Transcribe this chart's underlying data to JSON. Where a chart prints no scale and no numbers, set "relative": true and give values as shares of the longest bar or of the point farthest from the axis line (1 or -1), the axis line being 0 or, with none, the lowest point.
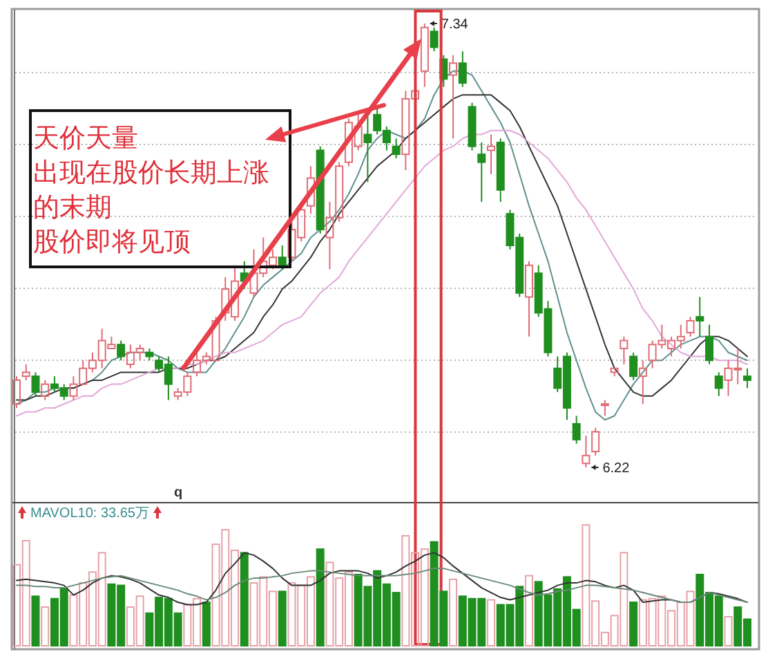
{
  "chart_data": [
    {
      "type": "candlestick",
      "grid": "y",
      "categories": [
        null,
        null,
        null,
        null,
        null,
        null,
        null,
        null,
        null,
        null,
        null,
        null,
        null,
        null,
        null,
        null,
        null,
        null,
        null,
        null,
        null,
        null,
        null,
        null,
        null,
        null,
        null,
        null,
        null,
        null,
        null,
        null,
        null,
        null,
        null,
        null,
        null,
        null,
        null,
        null,
        null,
        null,
        null,
        null,
        null,
        null,
        null,
        null,
        null,
        null,
        null,
        null,
        null,
        null,
        null,
        null,
        null,
        null,
        null,
        null,
        null,
        null,
        null,
        null,
        null,
        null,
        null,
        null,
        null,
        null,
        null,
        null,
        null,
        null,
        null,
        null,
        null,
        null
      ],
      "ohlc": [
        [
          6.38,
          6.45,
          6.37,
          6.44
        ],
        [
          6.45,
          6.48,
          6.44,
          6.46
        ],
        [
          6.45,
          6.46,
          6.4,
          6.41
        ],
        [
          6.4,
          6.44,
          6.39,
          6.43
        ],
        [
          6.43,
          6.45,
          6.41,
          6.42
        ],
        [
          6.42,
          6.43,
          6.39,
          6.4
        ],
        [
          6.4,
          6.45,
          6.39,
          6.43
        ],
        [
          6.43,
          6.49,
          6.43,
          6.47
        ],
        [
          6.47,
          6.51,
          6.46,
          6.49
        ],
        [
          6.49,
          6.57,
          6.47,
          6.54
        ],
        [
          6.52,
          6.55,
          6.52,
          6.53
        ],
        [
          6.53,
          6.54,
          6.49,
          6.5
        ],
        [
          6.48,
          6.53,
          6.47,
          6.51
        ],
        [
          6.51,
          6.53,
          6.49,
          6.52
        ],
        [
          6.51,
          6.52,
          6.49,
          6.5
        ],
        [
          6.49,
          6.5,
          6.46,
          6.47
        ],
        [
          6.48,
          6.5,
          6.39,
          6.43
        ],
        [
          6.4,
          6.42,
          6.39,
          6.41
        ],
        [
          6.41,
          6.46,
          6.4,
          6.45
        ],
        [
          6.46,
          6.51,
          6.45,
          6.49
        ],
        [
          6.49,
          6.51,
          6.48,
          6.5
        ],
        [
          6.49,
          6.6,
          6.49,
          6.59
        ],
        [
          6.61,
          6.7,
          6.59,
          6.67
        ],
        [
          6.6,
          6.73,
          6.59,
          6.69
        ],
        [
          6.71,
          6.74,
          6.67,
          6.69
        ],
        [
          6.66,
          6.77,
          6.65,
          6.71
        ],
        [
          6.71,
          6.8,
          6.7,
          6.74
        ],
        [
          6.73,
          6.77,
          6.72,
          6.75
        ],
        [
          6.75,
          6.78,
          6.72,
          6.73
        ],
        [
          6.75,
          6.84,
          6.74,
          6.82
        ],
        [
          6.8,
          6.88,
          6.79,
          6.87
        ],
        [
          6.88,
          6.98,
          6.86,
          6.95
        ],
        [
          7.02,
          7.03,
          6.81,
          6.82
        ],
        [
          6.8,
          6.89,
          6.72,
          6.85
        ],
        [
          6.85,
          6.99,
          6.84,
          6.98
        ],
        [
          6.99,
          7.1,
          6.98,
          7.09
        ],
        [
          7.03,
          7.11,
          7.02,
          7.08
        ],
        [
          7.06,
          7.11,
          6.94,
          7.04
        ],
        [
          7.11,
          7.13,
          7.06,
          7.07
        ],
        [
          7.07,
          7.08,
          7.02,
          7.04
        ],
        [
          7.03,
          7.05,
          7.0,
          7.01
        ],
        [
          7.01,
          7.17,
          6.97,
          7.15
        ],
        [
          7.15,
          7.18,
          7.13,
          7.17
        ],
        [
          7.22,
          7.34,
          7.18,
          7.33
        ],
        [
          7.32,
          7.33,
          7.27,
          7.28
        ],
        [
          7.25,
          7.26,
          7.18,
          7.2
        ],
        [
          7.21,
          7.26,
          7.05,
          7.24
        ],
        [
          7.24,
          7.27,
          7.18,
          7.19
        ],
        [
          7.13,
          7.14,
          7.02,
          7.03
        ],
        [
          7.01,
          7.04,
          6.89,
          6.99
        ],
        [
          7.02,
          7.06,
          6.96,
          7.03
        ],
        [
          7.04,
          7.05,
          6.89,
          6.92
        ],
        [
          6.86,
          6.87,
          6.77,
          6.78
        ],
        [
          6.8,
          6.81,
          6.65,
          6.66
        ],
        [
          6.65,
          6.74,
          6.55,
          6.73
        ],
        [
          6.71,
          6.73,
          6.6,
          6.61
        ],
        [
          6.62,
          6.64,
          6.5,
          6.51
        ],
        [
          6.47,
          6.5,
          6.41,
          6.42
        ],
        [
          6.5,
          6.51,
          6.34,
          6.37
        ],
        [
          6.33,
          6.35,
          6.28,
          6.29
        ],
        [
          6.23,
          6.3,
          6.22,
          6.25
        ],
        [
          6.26,
          6.32,
          6.25,
          6.31
        ],
        [
          6.38,
          6.39,
          6.35,
          6.38
        ],
        [
          6.46,
          6.47,
          6.45,
          6.47
        ],
        [
          6.52,
          6.55,
          6.48,
          6.54
        ],
        [
          6.5,
          6.51,
          6.44,
          6.45
        ],
        [
          6.45,
          6.49,
          6.38,
          6.47
        ],
        [
          6.49,
          6.54,
          6.47,
          6.53
        ],
        [
          6.53,
          6.58,
          6.52,
          6.54
        ],
        [
          6.52,
          6.55,
          6.5,
          6.54
        ],
        [
          6.54,
          6.58,
          6.52,
          6.55
        ],
        [
          6.56,
          6.6,
          6.55,
          6.59
        ],
        [
          6.6,
          6.65,
          6.55,
          6.59
        ],
        [
          6.55,
          6.58,
          6.48,
          6.49
        ],
        [
          6.45,
          6.46,
          6.4,
          6.42
        ],
        [
          6.44,
          6.49,
          6.4,
          6.47
        ],
        [
          6.47,
          6.52,
          6.43,
          6.47
        ],
        [
          6.45,
          6.47,
          6.42,
          6.44
        ]
      ],
      "colors": [
        "#e06c75",
        "#e06c75",
        "#1f8f1f",
        "#e06c75",
        "#1f8f1f",
        "#1f8f1f",
        "#e06c75",
        "#e06c75",
        "#e06c75",
        "#e06c75",
        "#e06c75",
        "#1f8f1f",
        "#e06c75",
        "#e06c75",
        "#1f8f1f",
        "#1f8f1f",
        "#1f8f1f",
        "#e06c75",
        "#e06c75",
        "#e06c75",
        "#e06c75",
        "#e06c75",
        "#e06c75",
        "#e06c75",
        "#1f8f1f",
        "#e06c75",
        "#e06c75",
        "#e06c75",
        "#1f8f1f",
        "#e06c75",
        "#e06c75",
        "#e06c75",
        "#1f8f1f",
        "#e06c75",
        "#e06c75",
        "#e06c75",
        "#e06c75",
        "#1f8f1f",
        "#1f8f1f",
        "#1f8f1f",
        "#1f8f1f",
        "#e06c75",
        "#e06c75",
        "#e06c75",
        "#1f8f1f",
        "#1f8f1f",
        "#e06c75",
        "#1f8f1f",
        "#1f8f1f",
        "#1f8f1f",
        "#e06c75",
        "#1f8f1f",
        "#1f8f1f",
        "#1f8f1f",
        "#e06c75",
        "#1f8f1f",
        "#1f8f1f",
        "#1f8f1f",
        "#1f8f1f",
        "#1f8f1f",
        "#e06c75",
        "#e06c75",
        "#e06c75",
        "#e06c75",
        "#e06c75",
        "#1f8f1f",
        "#e06c75",
        "#e06c75",
        "#e06c75",
        "#e06c75",
        "#e06c75",
        "#e06c75",
        "#1f8f1f",
        "#1f8f1f",
        "#1f8f1f",
        "#e06c75",
        "#e06c75",
        "#1f8f1f"
      ],
      "series": [
        {
          "type": "line",
          "color": "#5f8f8f",
          "values": [
            6.38,
            6.39,
            6.41,
            6.41,
            6.42,
            6.42,
            6.42,
            6.43,
            6.44,
            6.46,
            6.49,
            6.5,
            6.51,
            6.51,
            6.51,
            6.5,
            6.49,
            6.47,
            6.46,
            6.46,
            6.46,
            6.49,
            6.52,
            6.56,
            6.6,
            6.65,
            6.68,
            6.7,
            6.72,
            6.74,
            6.76,
            6.8,
            6.82,
            6.84,
            6.87,
            6.91,
            6.96,
            7.02,
            7.05,
            7.07,
            7.06,
            7.05,
            7.07,
            7.1,
            7.16,
            7.2,
            7.22,
            7.22,
            7.21,
            7.17,
            7.13,
            7.09,
            7.04,
            6.96,
            6.88,
            6.81,
            6.74,
            6.65,
            6.56,
            6.49,
            6.42,
            6.36,
            6.34,
            6.35,
            6.39,
            6.43,
            6.46,
            6.49,
            6.49,
            6.51,
            6.53,
            6.54,
            6.55,
            6.55,
            6.54,
            6.51,
            6.5,
            6.49
          ]
        },
        {
          "type": "line",
          "color": "#333333",
          "values": [
            6.39,
            6.39,
            6.4,
            6.4,
            6.41,
            6.42,
            6.42,
            6.43,
            6.44,
            6.44,
            6.45,
            6.46,
            6.46,
            6.46,
            6.46,
            6.46,
            6.47,
            6.47,
            6.47,
            6.48,
            6.49,
            6.49,
            6.5,
            6.52,
            6.54,
            6.56,
            6.6,
            6.63,
            6.67,
            6.69,
            6.72,
            6.75,
            6.79,
            6.82,
            6.86,
            6.89,
            6.92,
            6.95,
            6.98,
            7.0,
            7.02,
            7.05,
            7.07,
            7.09,
            7.11,
            7.13,
            7.15,
            7.16,
            7.16,
            7.16,
            7.16,
            7.14,
            7.12,
            7.08,
            7.03,
            6.98,
            6.93,
            6.88,
            6.81,
            6.74,
            6.67,
            6.6,
            6.53,
            6.47,
            6.44,
            6.41,
            6.4,
            6.4,
            6.42,
            6.44,
            6.47,
            6.5,
            6.53,
            6.55,
            6.55,
            6.54,
            6.52,
            6.5
          ]
        },
        {
          "type": "line",
          "color": "#e2a8d8",
          "values": [
            6.35,
            6.36,
            6.36,
            6.37,
            6.37,
            6.38,
            6.39,
            6.4,
            6.4,
            6.42,
            6.43,
            6.43,
            6.44,
            6.45,
            6.46,
            6.47,
            6.47,
            6.47,
            6.48,
            6.48,
            6.49,
            6.5,
            6.51,
            6.51,
            6.52,
            6.53,
            6.54,
            6.56,
            6.58,
            6.59,
            6.6,
            6.63,
            6.66,
            6.68,
            6.7,
            6.74,
            6.77,
            6.8,
            6.83,
            6.86,
            6.89,
            6.92,
            6.95,
            6.98,
            7.0,
            7.02,
            7.03,
            7.05,
            7.06,
            7.06,
            7.07,
            7.07,
            7.07,
            7.06,
            7.04,
            7.02,
            7.0,
            6.97,
            6.94,
            6.9,
            6.87,
            6.83,
            6.79,
            6.75,
            6.71,
            6.67,
            6.62,
            6.59,
            6.55,
            6.53,
            6.51,
            6.5,
            6.5,
            6.5,
            6.49,
            6.49,
            6.49,
            6.48
          ]
        }
      ],
      "annotations": [
        "天价天量",
        "出现在股价长期上涨",
        "的末期",
        "股价即将见顶",
        "q",
        "7.34",
        "6.22"
      ]
    },
    {
      "type": "bar",
      "relative": true,
      "categories": [
        null,
        null,
        null,
        null,
        null,
        null,
        null,
        null,
        null,
        null,
        null,
        null,
        null,
        null,
        null,
        null,
        null,
        null,
        null,
        null,
        null,
        null,
        null,
        null,
        null,
        null,
        null,
        null,
        null,
        null,
        null,
        null,
        null,
        null,
        null,
        null,
        null,
        null,
        null,
        null,
        null,
        null,
        null,
        null,
        null,
        null,
        null,
        null,
        null,
        null,
        null,
        null,
        null,
        null,
        null,
        null,
        null,
        null,
        null,
        null,
        null,
        null,
        null,
        null,
        null,
        null,
        null,
        null,
        null,
        null,
        null,
        null,
        null,
        null,
        null,
        null,
        null,
        null
      ],
      "values": [
        0.67,
        0.87,
        0.41,
        0.32,
        0.39,
        0.47,
        0.42,
        0.52,
        0.61,
        0.77,
        0.51,
        0.5,
        0.32,
        0.41,
        0.27,
        0.4,
        0.39,
        0.27,
        0.34,
        0.39,
        0.36,
        0.84,
        0.96,
        0.79,
        0.77,
        0.52,
        0.57,
        0.45,
        0.45,
        0.52,
        0.5,
        0.57,
        0.8,
        0.69,
        0.56,
        0.61,
        0.59,
        0.49,
        0.62,
        0.51,
        0.44,
        0.91,
        0.77,
        0.8,
        0.86,
        0.45,
        0.55,
        0.41,
        0.39,
        0.39,
        0.38,
        0.34,
        0.34,
        0.49,
        0.58,
        0.53,
        0.42,
        0.47,
        0.57,
        0.3,
        1,
        0.37,
        0.11,
        0.25,
        0.77,
        0.36,
        0.38,
        0.39,
        0.41,
        0.29,
        0.36,
        0.45,
        0.59,
        0.44,
        0.41,
        0.24,
        0.32,
        0.22
      ],
      "colors": [
        "#e6a1a8",
        "#e6a1a8",
        "#1f8f1f",
        "#e6a1a8",
        "#1f8f1f",
        "#1f8f1f",
        "#e6a1a8",
        "#e6a1a8",
        "#e6a1a8",
        "#e6a1a8",
        "#1f8f1f",
        "#1f8f1f",
        "#e6a1a8",
        "#e6a1a8",
        "#1f8f1f",
        "#1f8f1f",
        "#1f8f1f",
        "#1f8f1f",
        "#e6a1a8",
        "#e6a1a8",
        "#1f8f1f",
        "#e6a1a8",
        "#e6a1a8",
        "#e6a1a8",
        "#1f8f1f",
        "#e6a1a8",
        "#e6a1a8",
        "#e6a1a8",
        "#1f8f1f",
        "#e6a1a8",
        "#e6a1a8",
        "#e6a1a8",
        "#1f8f1f",
        "#e6a1a8",
        "#e6a1a8",
        "#e6a1a8",
        "#1f8f1f",
        "#1f8f1f",
        "#1f8f1f",
        "#1f8f1f",
        "#1f8f1f",
        "#e6a1a8",
        "#e6a1a8",
        "#e6a1a8",
        "#1f8f1f",
        "#1f8f1f",
        "#e6a1a8",
        "#1f8f1f",
        "#1f8f1f",
        "#1f8f1f",
        "#e6a1a8",
        "#1f8f1f",
        "#1f8f1f",
        "#1f8f1f",
        "#e6a1a8",
        "#1f8f1f",
        "#1f8f1f",
        "#1f8f1f",
        "#1f8f1f",
        "#1f8f1f",
        "#e6a1a8",
        "#e6a1a8",
        "#e6a1a8",
        "#e6a1a8",
        "#e6a1a8",
        "#1f8f1f",
        "#e6a1a8",
        "#e6a1a8",
        "#e6a1a8",
        "#e6a1a8",
        "#e6a1a8",
        "#e6a1a8",
        "#1f8f1f",
        "#1f8f1f",
        "#1f8f1f",
        "#e6a1a8",
        "#1f8f1f",
        "#1f8f1f"
      ],
      "series": [
        {
          "type": "line",
          "color": "#333333",
          "values": [
            0.54,
            0.55,
            0.54,
            0.53,
            0.52,
            0.5,
            0.42,
            0.46,
            0.52,
            0.56,
            0.58,
            0.57,
            0.55,
            0.52,
            0.47,
            0.42,
            0.4,
            0.36,
            0.34,
            0.34,
            0.36,
            0.46,
            0.6,
            0.68,
            0.77,
            0.75,
            0.7,
            0.64,
            0.56,
            0.5,
            0.5,
            0.5,
            0.54,
            0.6,
            0.62,
            0.62,
            0.62,
            0.6,
            0.56,
            0.58,
            0.61,
            0.66,
            0.7,
            0.75,
            0.77,
            0.73,
            0.66,
            0.6,
            0.54,
            0.48,
            0.44,
            0.4,
            0.38,
            0.4,
            0.42,
            0.44,
            0.46,
            0.5,
            0.52,
            0.52,
            0.54,
            0.53,
            0.5,
            0.48,
            0.5,
            0.46,
            0.36,
            0.37,
            0.38,
            0.38,
            0.36,
            0.36,
            0.4,
            0.44,
            0.43,
            0.41,
            0.39,
            0.36
          ]
        },
        {
          "type": "line",
          "color": "#6a8a7a",
          "values": [
            0.5,
            0.5,
            0.49,
            0.49,
            0.48,
            0.48,
            0.5,
            0.52,
            0.54,
            0.56,
            0.57,
            0.58,
            0.56,
            0.54,
            0.52,
            0.5,
            0.48,
            0.46,
            0.43,
            0.41,
            0.38,
            0.4,
            0.44,
            0.5,
            0.54,
            0.56,
            0.56,
            0.57,
            0.58,
            0.6,
            0.61,
            0.62,
            0.62,
            0.61,
            0.6,
            0.59,
            0.58,
            0.58,
            0.58,
            0.58,
            0.58,
            0.59,
            0.6,
            0.62,
            0.64,
            0.64,
            0.62,
            0.6,
            0.58,
            0.56,
            0.54,
            0.52,
            0.5,
            0.47,
            0.44,
            0.42,
            0.43,
            0.45,
            0.46,
            0.48,
            0.5,
            0.5,
            0.49,
            0.48,
            0.47,
            0.46,
            0.44,
            0.42,
            0.4,
            0.38,
            0.36,
            0.36,
            0.4,
            0.44,
            0.42,
            0.4,
            0.38,
            0.36
          ]
        }
      ],
      "annotations": [
        "MAVOL10: 33.65万"
      ]
    }
  ]
}
